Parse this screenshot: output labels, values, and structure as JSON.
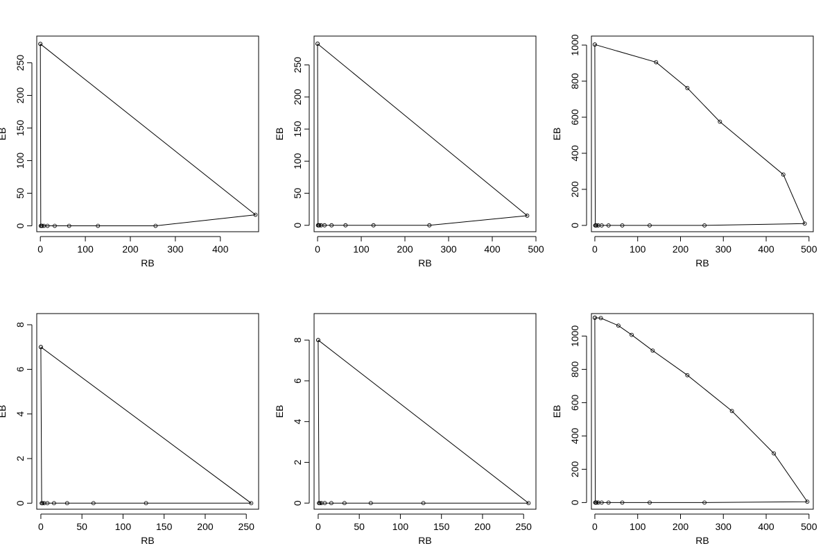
{
  "chart_data": [
    {
      "type": "line",
      "xlabel": "RB",
      "ylabel": "EB",
      "xlim": [
        -8,
        485
      ],
      "ylim": [
        -9,
        291
      ],
      "xticks": [
        0,
        100,
        200,
        300,
        400
      ],
      "yticks": [
        0,
        50,
        100,
        150,
        200,
        250
      ],
      "grid": false,
      "series": [
        {
          "x": [
            0,
            1,
            2,
            4,
            8,
            16,
            32,
            64,
            128,
            256,
            478,
            0
          ],
          "y": [
            279,
            0,
            0,
            0,
            0,
            0,
            0,
            0,
            0,
            0,
            17,
            279
          ]
        }
      ]
    },
    {
      "type": "line",
      "xlabel": "RB",
      "ylabel": "EB",
      "xlim": [
        -8,
        500
      ],
      "ylim": [
        -10,
        295
      ],
      "xticks": [
        0,
        100,
        200,
        300,
        400,
        500
      ],
      "yticks": [
        0,
        50,
        100,
        150,
        200,
        250
      ],
      "grid": false,
      "series": [
        {
          "x": [
            0,
            1,
            2,
            4,
            8,
            16,
            32,
            64,
            128,
            256,
            480,
            0
          ],
          "y": [
            283,
            0,
            0,
            0,
            0,
            0,
            0,
            0,
            0,
            0,
            15,
            283
          ]
        }
      ]
    },
    {
      "type": "line",
      "xlabel": "RB",
      "ylabel": "EB",
      "xlim": [
        -8,
        510
      ],
      "ylim": [
        -35,
        1050
      ],
      "xticks": [
        0,
        100,
        200,
        300,
        400,
        500
      ],
      "yticks": [
        0,
        200,
        400,
        600,
        800,
        1000
      ],
      "grid": false,
      "series": [
        {
          "x": [
            0,
            1,
            2,
            4,
            8,
            16,
            32,
            64,
            128,
            256,
            490,
            440,
            292,
            216,
            143,
            0
          ],
          "y": [
            1003,
            0,
            0,
            0,
            0,
            0,
            0,
            0,
            0,
            0,
            10,
            282,
            575,
            762,
            905,
            1003
          ]
        }
      ]
    },
    {
      "type": "line",
      "xlabel": "RB",
      "ylabel": "EB",
      "xlim": [
        -5,
        265
      ],
      "ylim": [
        -0.27,
        8.5
      ],
      "xticks": [
        0,
        50,
        100,
        150,
        200,
        250
      ],
      "yticks": [
        0,
        2,
        4,
        6,
        8
      ],
      "grid": false,
      "series": [
        {
          "x": [
            0,
            1,
            2,
            4,
            8,
            16,
            32,
            64,
            128,
            256,
            0
          ],
          "y": [
            7,
            0,
            0,
            0,
            0,
            0,
            0,
            0,
            0,
            0,
            7
          ]
        }
      ]
    },
    {
      "type": "line",
      "xlabel": "RB",
      "ylabel": "EB",
      "xlim": [
        -5,
        265
      ],
      "ylim": [
        -0.3,
        9.3
      ],
      "xticks": [
        0,
        50,
        100,
        150,
        200,
        250
      ],
      "yticks": [
        0,
        2,
        4,
        6,
        8
      ],
      "grid": false,
      "series": [
        {
          "x": [
            0,
            1,
            2,
            4,
            8,
            16,
            32,
            64,
            128,
            256,
            0
          ],
          "y": [
            8,
            0,
            0,
            0,
            0,
            0,
            0,
            0,
            0,
            0,
            8
          ]
        }
      ]
    },
    {
      "type": "line",
      "xlabel": "RB",
      "ylabel": "EB",
      "xlim": [
        -8,
        510
      ],
      "ylim": [
        -40,
        1135
      ],
      "xticks": [
        0,
        100,
        200,
        300,
        400,
        500
      ],
      "yticks": [
        0,
        200,
        400,
        600,
        800,
        1000
      ],
      "grid": false,
      "series": [
        {
          "x": [
            0,
            1,
            2,
            4,
            8,
            16,
            32,
            64,
            128,
            256,
            496,
            418,
            320,
            216,
            135,
            86,
            55,
            14,
            0
          ],
          "y": [
            1110,
            0,
            0,
            0,
            0,
            0,
            0,
            0,
            0,
            0,
            5,
            295,
            550,
            765,
            913,
            1007,
            1063,
            1108,
            1110
          ]
        }
      ]
    }
  ]
}
